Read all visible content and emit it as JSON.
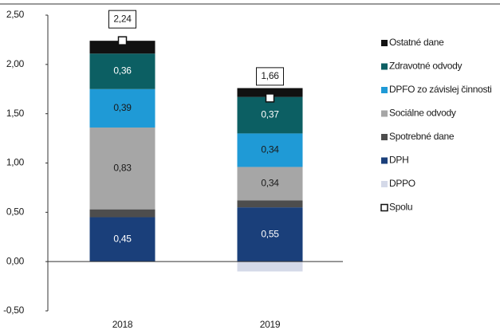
{
  "chart_data": {
    "type": "stacked_bar",
    "categories": [
      "2018",
      "2019"
    ],
    "series": [
      {
        "name": "Ostatné dane",
        "color": "#111111",
        "values": [
          0.13,
          0.09
        ],
        "value_labels": [
          null,
          null
        ]
      },
      {
        "name": "Zdravotné odvody",
        "color": "#0c5f63",
        "values": [
          0.36,
          0.37
        ],
        "value_labels": [
          "0,36",
          "0,37"
        ],
        "label_color": "#ffffff"
      },
      {
        "name": "DPFO zo závislej činnosti",
        "color": "#1f9ad6",
        "values": [
          0.39,
          0.34
        ],
        "value_labels": [
          "0,39",
          "0,34"
        ],
        "label_color": "#1a1a1a"
      },
      {
        "name": "Sociálne odvody",
        "color": "#a6a6a6",
        "values": [
          0.83,
          0.34
        ],
        "value_labels": [
          "0,83",
          "0,34"
        ],
        "label_color": "#1a1a1a"
      },
      {
        "name": "Spotrebné dane",
        "color": "#4d4d4d",
        "values": [
          0.08,
          0.07
        ],
        "value_labels": [
          null,
          null
        ]
      },
      {
        "name": "DPH",
        "color": "#1a3f7a",
        "values": [
          0.45,
          0.55
        ],
        "value_labels": [
          "0,45",
          "0,55"
        ],
        "label_color": "#ffffff"
      },
      {
        "name": "DPPO",
        "color": "#d4d9e8",
        "values": [
          0,
          -0.1
        ],
        "value_labels": [
          null,
          null
        ]
      },
      {
        "name": "Spolu",
        "color": "#ffffff",
        "marker": "square",
        "values": [
          2.24,
          1.66
        ],
        "value_labels": [
          "2,24",
          "1,66"
        ]
      }
    ],
    "ylim": [
      -0.5,
      2.5
    ],
    "yticks": [
      {
        "value": -0.5,
        "label": "-0,50"
      },
      {
        "value": 0,
        "label": "0,00"
      },
      {
        "value": 0.5,
        "label": "0,50"
      },
      {
        "value": 1,
        "label": "1,00"
      },
      {
        "value": 1.5,
        "label": "1,50"
      },
      {
        "value": 2,
        "label": "2,00"
      },
      {
        "value": 2.5,
        "label": "2,50"
      }
    ],
    "legend": "right"
  }
}
